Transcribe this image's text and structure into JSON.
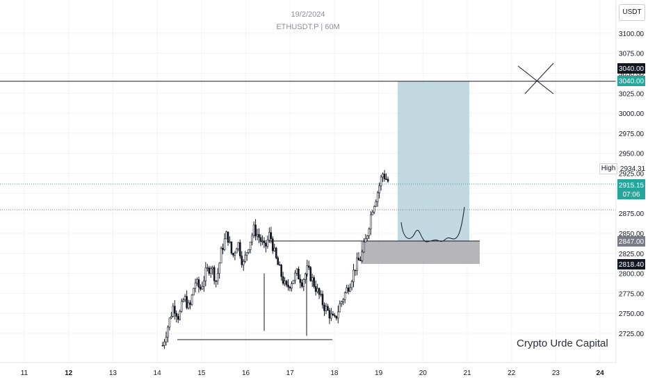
{
  "header": {
    "date": "19/2/2024",
    "symbol_line": "ETHUSDT.P | 60M"
  },
  "watermark": "Crypto Urde Capital",
  "currency": "USDT",
  "colors": {
    "up": "#131722",
    "down": "#131722",
    "grid": "#f0f3fa",
    "zone": "#a9c9d6",
    "entry_zone": "#9e9ea3",
    "current": "#26a69a"
  },
  "price_tags": {
    "line_3040": "3040.00",
    "tp_3040": "3040.00",
    "high_label": "High",
    "high_value": "2934.31",
    "current_price": "2915.15",
    "countdown": "07:06",
    "entry": "2847.00",
    "stop": "2818.40"
  },
  "chart_data": {
    "type": "candlestick",
    "y_ticks": [
      "3100.00",
      "3075.00",
      "3050.00",
      "3025.00",
      "3000.00",
      "2975.00",
      "2950.00",
      "2925.00",
      "2900.00",
      "2875.00",
      "2850.00",
      "2825.00",
      "2800.00",
      "2775.00",
      "2750.00",
      "2725.00"
    ],
    "x_ticks": [
      "11",
      "12",
      "13",
      "14",
      "15",
      "16",
      "17",
      "18",
      "19",
      "20",
      "21",
      "22",
      "23",
      "24"
    ],
    "ylim": [
      2705,
      3112
    ],
    "levels": {
      "resistance": 3040,
      "current": 2915.15,
      "dotted": 2894,
      "entry": 2847,
      "stop": 2818.4,
      "support": 2727
    },
    "candles_close_path": [
      2710,
      2735,
      2760,
      2745,
      2770,
      2755,
      2790,
      2780,
      2800,
      2810,
      2790,
      2830,
      2850,
      2820,
      2840,
      2810,
      2835,
      2855,
      2845,
      2830,
      2850,
      2820,
      2800,
      2780,
      2790,
      2800,
      2790,
      2805,
      2790,
      2775,
      2760,
      2750,
      2740,
      2760,
      2775,
      2790,
      2810,
      2820,
      2845,
      2880,
      2900,
      2925,
      2915
    ]
  }
}
